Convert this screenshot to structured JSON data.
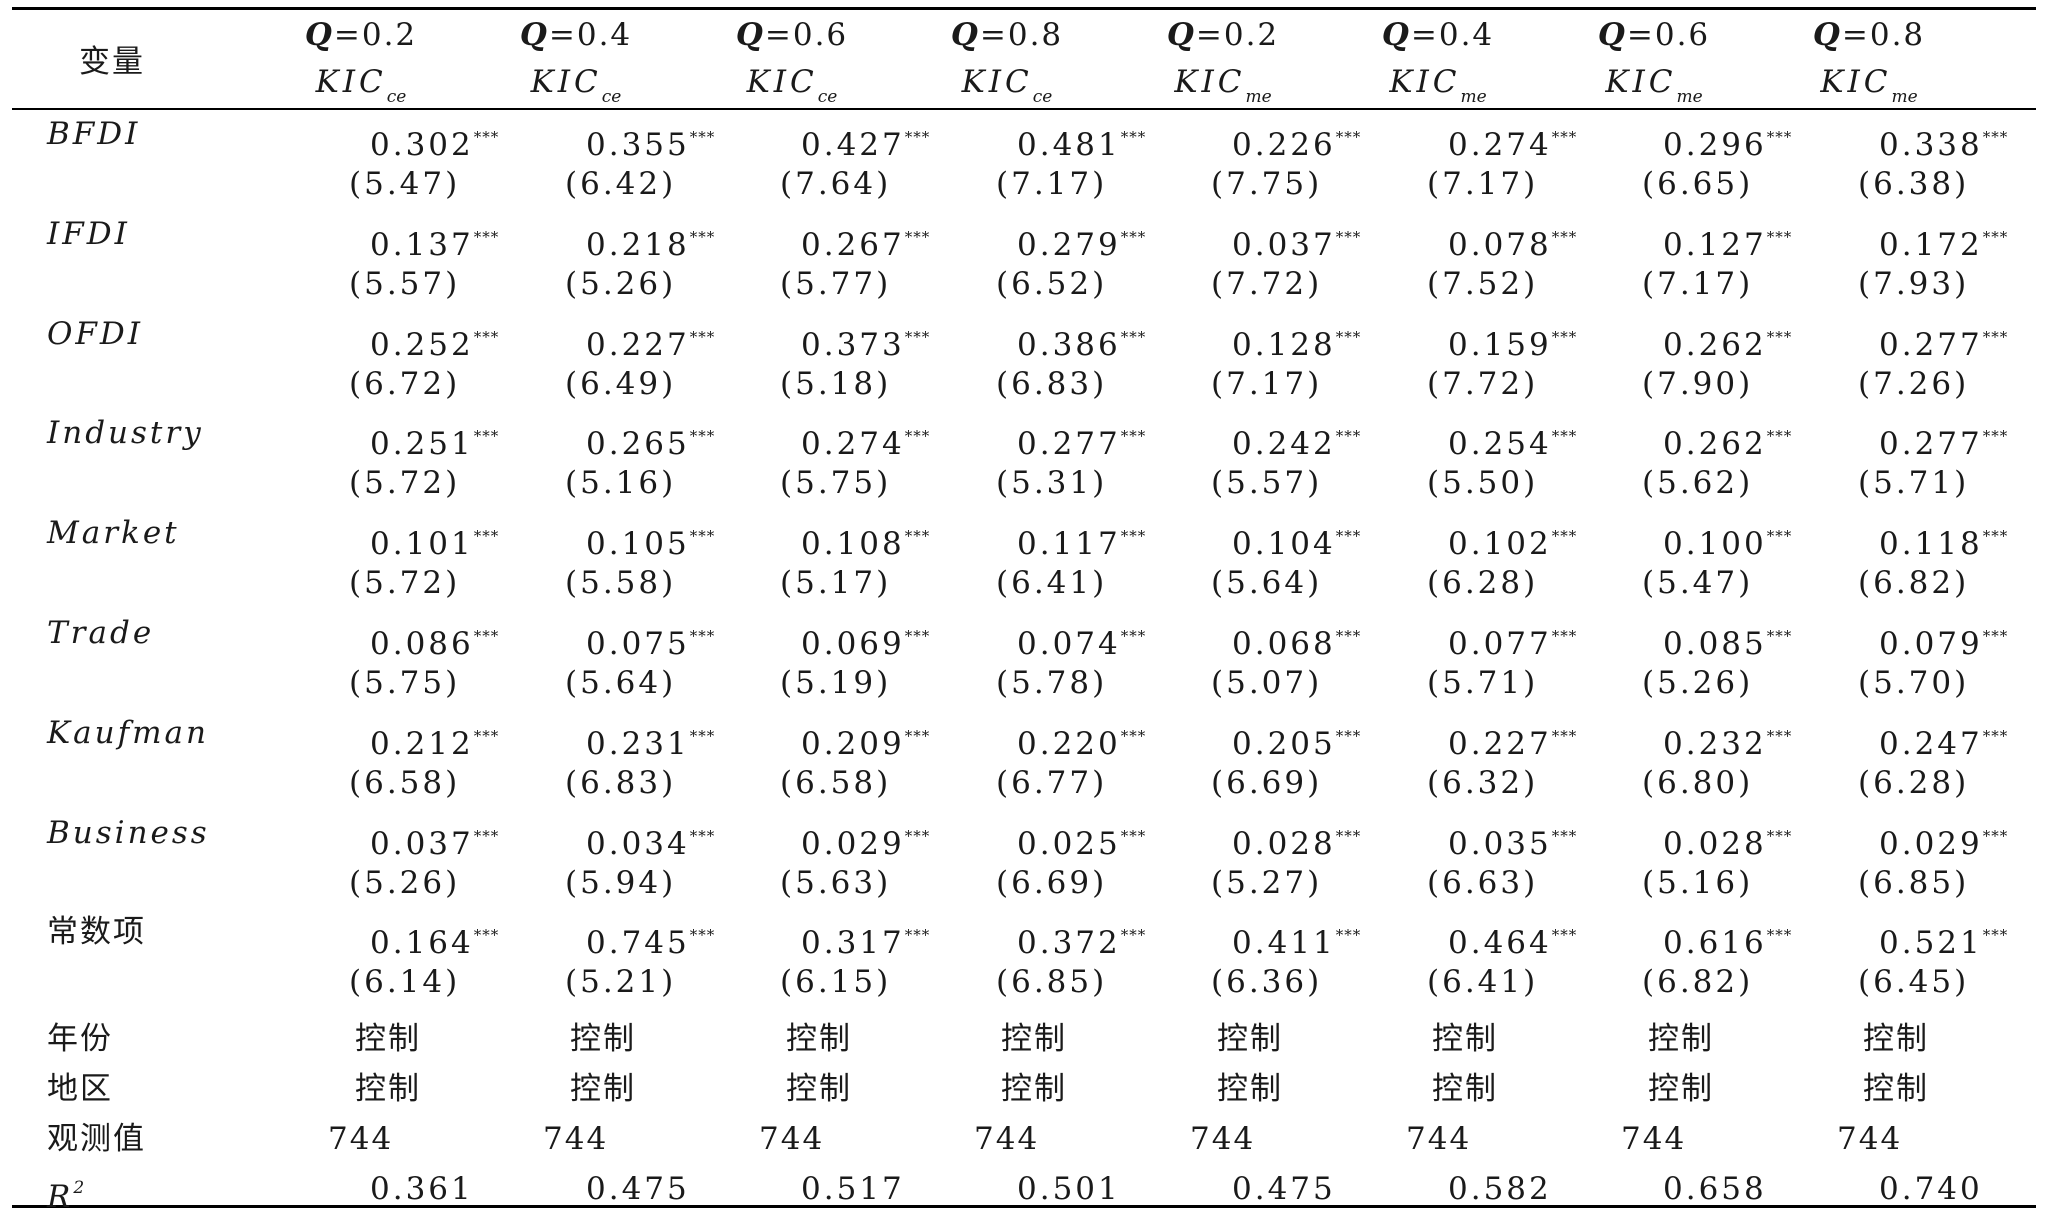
{
  "table": {
    "corner_label": "变量",
    "columns": [
      {
        "q_label": "Q",
        "q_value": "=0.2",
        "kic": "KIC",
        "kic_sub": "ce"
      },
      {
        "q_label": "Q",
        "q_value": "=0.4",
        "kic": "KIC",
        "kic_sub": "ce"
      },
      {
        "q_label": "Q",
        "q_value": "=0.6",
        "kic": "KIC",
        "kic_sub": "ce"
      },
      {
        "q_label": "Q",
        "q_value": "=0.8",
        "kic": "KIC",
        "kic_sub": "ce"
      },
      {
        "q_label": "Q",
        "q_value": "=0.2",
        "kic": "KIC",
        "kic_sub": "me"
      },
      {
        "q_label": "Q",
        "q_value": "=0.4",
        "kic": "KIC",
        "kic_sub": "me"
      },
      {
        "q_label": "Q",
        "q_value": "=0.6",
        "kic": "KIC",
        "kic_sub": "me"
      },
      {
        "q_label": "Q",
        "q_value": "=0.8",
        "kic": "KIC",
        "kic_sub": "me"
      }
    ],
    "significance_mark": "***",
    "variables": [
      {
        "name": "BFDI",
        "coefs": [
          "0.302",
          "0.355",
          "0.427",
          "0.481",
          "0.226",
          "0.274",
          "0.296",
          "0.338"
        ],
        "tstats": [
          "(5.47)",
          "(6.42)",
          "(7.64)",
          "(7.17)",
          "(7.75)",
          "(7.17)",
          "(6.65)",
          "(6.38)"
        ]
      },
      {
        "name": "IFDI",
        "coefs": [
          "0.137",
          "0.218",
          "0.267",
          "0.279",
          "0.037",
          "0.078",
          "0.127",
          "0.172"
        ],
        "tstats": [
          "(5.57)",
          "(5.26)",
          "(5.77)",
          "(6.52)",
          "(7.72)",
          "(7.52)",
          "(7.17)",
          "(7.93)"
        ]
      },
      {
        "name": "OFDI",
        "coefs": [
          "0.252",
          "0.227",
          "0.373",
          "0.386",
          "0.128",
          "0.159",
          "0.262",
          "0.277"
        ],
        "tstats": [
          "(6.72)",
          "(6.49)",
          "(5.18)",
          "(6.83)",
          "(7.17)",
          "(7.72)",
          "(7.90)",
          "(7.26)"
        ]
      },
      {
        "name": "Industry",
        "coefs": [
          "0.251",
          "0.265",
          "0.274",
          "0.277",
          "0.242",
          "0.254",
          "0.262",
          "0.277"
        ],
        "tstats": [
          "(5.72)",
          "(5.16)",
          "(5.75)",
          "(5.31)",
          "(5.57)",
          "(5.50)",
          "(5.62)",
          "(5.71)"
        ]
      },
      {
        "name": "Market",
        "coefs": [
          "0.101",
          "0.105",
          "0.108",
          "0.117",
          "0.104",
          "0.102",
          "0.100",
          "0.118"
        ],
        "tstats": [
          "(5.72)",
          "(5.58)",
          "(5.17)",
          "(6.41)",
          "(5.64)",
          "(6.28)",
          "(5.47)",
          "(6.82)"
        ]
      },
      {
        "name": "Trade",
        "coefs": [
          "0.086",
          "0.075",
          "0.069",
          "0.074",
          "0.068",
          "0.077",
          "0.085",
          "0.079"
        ],
        "tstats": [
          "(5.75)",
          "(5.64)",
          "(5.19)",
          "(5.78)",
          "(5.07)",
          "(5.71)",
          "(5.26)",
          "(5.70)"
        ]
      },
      {
        "name": "Kaufman",
        "coefs": [
          "0.212",
          "0.231",
          "0.209",
          "0.220",
          "0.205",
          "0.227",
          "0.232",
          "0.247"
        ],
        "tstats": [
          "(6.58)",
          "(6.83)",
          "(6.58)",
          "(6.77)",
          "(6.69)",
          "(6.32)",
          "(6.80)",
          "(6.28)"
        ]
      },
      {
        "name": "Business",
        "coefs": [
          "0.037",
          "0.034",
          "0.029",
          "0.025",
          "0.028",
          "0.035",
          "0.028",
          "0.029"
        ],
        "tstats": [
          "(5.26)",
          "(5.94)",
          "(5.63)",
          "(6.69)",
          "(5.27)",
          "(6.63)",
          "(5.16)",
          "(6.85)"
        ]
      },
      {
        "name": "常数项",
        "coefs": [
          "0.164",
          "0.745",
          "0.317",
          "0.372",
          "0.411",
          "0.464",
          "0.616",
          "0.521"
        ],
        "tstats": [
          "(6.14)",
          "(5.21)",
          "(6.15)",
          "(6.85)",
          "(6.36)",
          "(6.41)",
          "(6.82)",
          "(6.45)"
        ]
      }
    ],
    "control_rows": [
      {
        "label": "年份",
        "values": [
          "控制",
          "控制",
          "控制",
          "控制",
          "控制",
          "控制",
          "控制",
          "控制"
        ]
      },
      {
        "label": "地区",
        "values": [
          "控制",
          "控制",
          "控制",
          "控制",
          "控制",
          "控制",
          "控制",
          "控制"
        ]
      }
    ],
    "observations": {
      "label": "观测值",
      "values": [
        "744",
        "744",
        "744",
        "744",
        "744",
        "744",
        "744",
        "744"
      ]
    },
    "r2": {
      "label": "R",
      "label_sup": "2",
      "values": [
        "0.361",
        "0.475",
        "0.517",
        "0.501",
        "0.475",
        "0.582",
        "0.658",
        "0.740"
      ]
    }
  }
}
